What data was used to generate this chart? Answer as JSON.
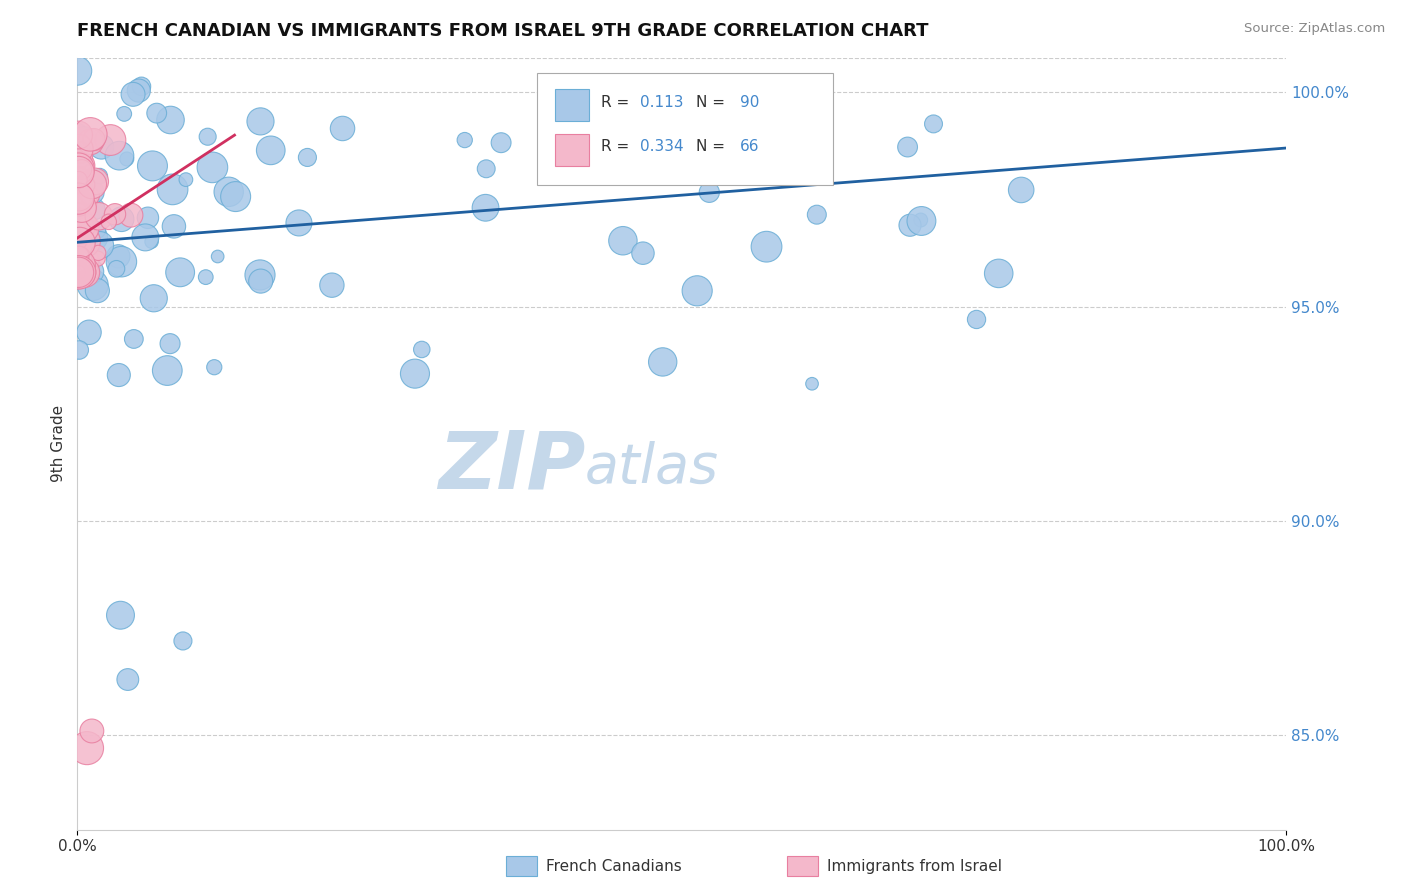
{
  "title": "FRENCH CANADIAN VS IMMIGRANTS FROM ISRAEL 9TH GRADE CORRELATION CHART",
  "source_text": "Source: ZipAtlas.com",
  "ylabel": "9th Grade",
  "legend_r1": "R =  0.113   N = 90",
  "legend_r2": "R =  0.334   N = 66",
  "legend_label1": "French Canadians",
  "legend_label2": "Immigrants from Israel",
  "blue_color": "#a8c8e8",
  "blue_edge_color": "#6baed6",
  "pink_color": "#f4b8cb",
  "pink_edge_color": "#e87fa0",
  "blue_line_color": "#2060a0",
  "pink_line_color": "#d03060",
  "x_min": 0.0,
  "x_max": 1.0,
  "y_min": 0.828,
  "y_max": 1.008,
  "y_ticks": [
    0.85,
    0.9,
    0.95,
    1.0
  ],
  "y_tick_labels": [
    "85.0%",
    "90.0%",
    "95.0%",
    "100.0%"
  ],
  "background_color": "#ffffff",
  "grid_color": "#cccccc",
  "watermark_zip": "ZIP",
  "watermark_atlas": "atlas",
  "watermark_color": "#c5d8ea",
  "title_color": "#111111",
  "source_color": "#888888",
  "right_tick_color": "#4488cc",
  "legend_text_color_r": "#0044aa",
  "legend_text_color_n": "#000000"
}
